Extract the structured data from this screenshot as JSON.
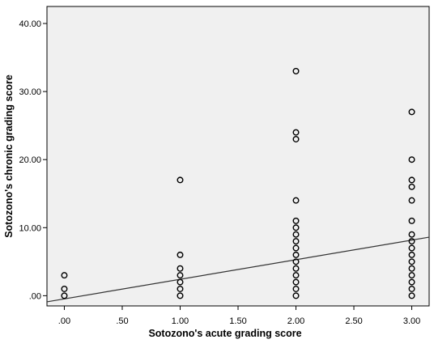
{
  "chart_data": {
    "type": "scatter",
    "xlabel": "Sotozono's acute grading score",
    "ylabel": "Sotozono's chronic grading score",
    "xlim": [
      -0.15,
      3.15
    ],
    "ylim": [
      -1.5,
      42.5
    ],
    "x_ticks": [
      {
        "value": 0,
        "label": ".00"
      },
      {
        "value": 0.5,
        "label": ".50"
      },
      {
        "value": 1,
        "label": "1.00"
      },
      {
        "value": 1.5,
        "label": "1.50"
      },
      {
        "value": 2,
        "label": "2.00"
      },
      {
        "value": 2.5,
        "label": "2.50"
      },
      {
        "value": 3,
        "label": "3.00"
      }
    ],
    "y_ticks": [
      {
        "value": 0,
        "label": ".00"
      },
      {
        "value": 10,
        "label": "10.00"
      },
      {
        "value": 20,
        "label": "20.00"
      },
      {
        "value": 30,
        "label": "30.00"
      },
      {
        "value": 40,
        "label": "40.00"
      }
    ],
    "grid": false,
    "legend": "none",
    "plot_background": "#f0f0f0",
    "marker_color": "#000000",
    "points": [
      {
        "x": 0,
        "y": 0
      },
      {
        "x": 0,
        "y": 1
      },
      {
        "x": 0,
        "y": 3
      },
      {
        "x": 1,
        "y": 0
      },
      {
        "x": 1,
        "y": 1
      },
      {
        "x": 1,
        "y": 2
      },
      {
        "x": 1,
        "y": 3
      },
      {
        "x": 1,
        "y": 4
      },
      {
        "x": 1,
        "y": 6
      },
      {
        "x": 1,
        "y": 17
      },
      {
        "x": 2,
        "y": 0
      },
      {
        "x": 2,
        "y": 1
      },
      {
        "x": 2,
        "y": 2
      },
      {
        "x": 2,
        "y": 3
      },
      {
        "x": 2,
        "y": 4
      },
      {
        "x": 2,
        "y": 5
      },
      {
        "x": 2,
        "y": 6
      },
      {
        "x": 2,
        "y": 7
      },
      {
        "x": 2,
        "y": 8
      },
      {
        "x": 2,
        "y": 9
      },
      {
        "x": 2,
        "y": 10
      },
      {
        "x": 2,
        "y": 11
      },
      {
        "x": 2,
        "y": 14
      },
      {
        "x": 2,
        "y": 23
      },
      {
        "x": 2,
        "y": 24
      },
      {
        "x": 2,
        "y": 33
      },
      {
        "x": 3,
        "y": 0
      },
      {
        "x": 3,
        "y": 1
      },
      {
        "x": 3,
        "y": 2
      },
      {
        "x": 3,
        "y": 3
      },
      {
        "x": 3,
        "y": 4
      },
      {
        "x": 3,
        "y": 5
      },
      {
        "x": 3,
        "y": 6
      },
      {
        "x": 3,
        "y": 7
      },
      {
        "x": 3,
        "y": 8
      },
      {
        "x": 3,
        "y": 9
      },
      {
        "x": 3,
        "y": 11
      },
      {
        "x": 3,
        "y": 14
      },
      {
        "x": 3,
        "y": 16
      },
      {
        "x": 3,
        "y": 17
      },
      {
        "x": 3,
        "y": 20
      },
      {
        "x": 3,
        "y": 27
      }
    ],
    "fit_line": {
      "color": "#333333",
      "from": {
        "x": -0.15,
        "y": -0.9
      },
      "to": {
        "x": 3.15,
        "y": 8.6
      }
    }
  }
}
